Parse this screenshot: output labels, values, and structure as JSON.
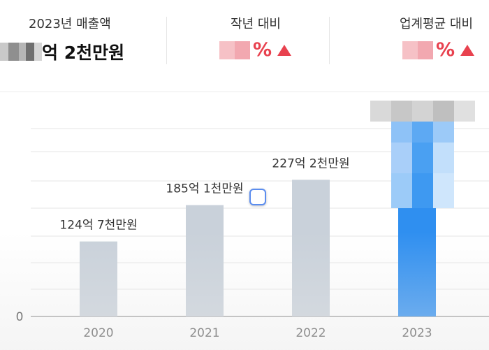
{
  "header": {
    "revenue_label": "2023년 매출액",
    "revenue_value_suffix": "억 2천만원",
    "yoy_label": "작년 대비",
    "yoy_unit": "%",
    "industry_label": "업계평균 대비",
    "industry_unit": "%"
  },
  "colors": {
    "bar_past": "#c9d1da",
    "bar_current": "#2f8ff0",
    "up_arrow": "#e8424f",
    "grid": "#e5e5e5"
  },
  "icons": [
    "up-triangle-icon"
  ],
  "chart_data": {
    "type": "bar",
    "categories": [
      "2020",
      "2021",
      "2022",
      "2023"
    ],
    "values": [
      124.7,
      185.1,
      227.2,
      null
    ],
    "data_labels": [
      "124억 7천만원",
      "185억 1천만원",
      "227억 2천만원",
      ""
    ],
    "y_tick_labels": [
      "0"
    ],
    "ylim": [
      0,
      360
    ],
    "grid": true,
    "legend": "none"
  }
}
